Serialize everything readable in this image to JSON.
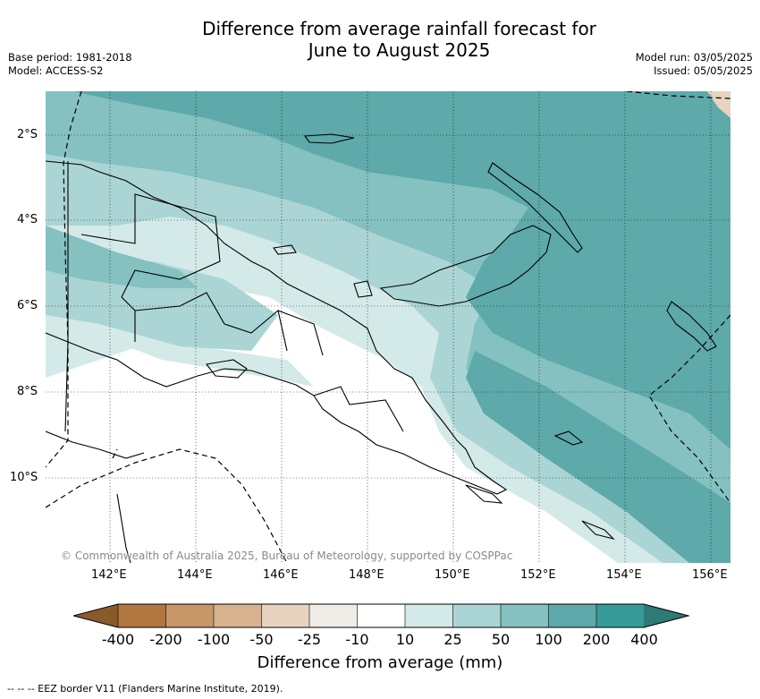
{
  "title_line1": "Difference from average rainfall forecast for",
  "title_line2": "June to August 2025",
  "base_period": "Base period: 1981-2018",
  "model": "Model: ACCESS-S2",
  "model_run": "Model run: 03/05/2025",
  "issued": "Issued: 05/05/2025",
  "lat_labels": [
    "2°S",
    "4°S",
    "6°S",
    "8°S",
    "10°S"
  ],
  "lon_labels": [
    "142°E",
    "144°E",
    "146°E",
    "148°E",
    "150°E",
    "152°E",
    "154°E",
    "156°E"
  ],
  "copyright": "© Commonwealth of Australia 2025, Bureau of Meteorology, supported by COSPPac",
  "colorbar": {
    "ticks": [
      "-400",
      "-200",
      "-100",
      "-50",
      "-25",
      "-10",
      "10",
      "25",
      "50",
      "100",
      "200",
      "400"
    ],
    "colors": [
      "#8a5a2b",
      "#b07840",
      "#c79669",
      "#d8b391",
      "#e8d3c1",
      "#efebe7",
      "#ffffff",
      "#d4eae9",
      "#aad5d4",
      "#84c1c0",
      "#5ea9a9",
      "#369b98",
      "#2e7a74"
    ],
    "title": "Difference from average (mm)"
  },
  "legend_eez": "-- -- -- EEZ border V11 (Flanders Marine Institute, 2019)."
}
